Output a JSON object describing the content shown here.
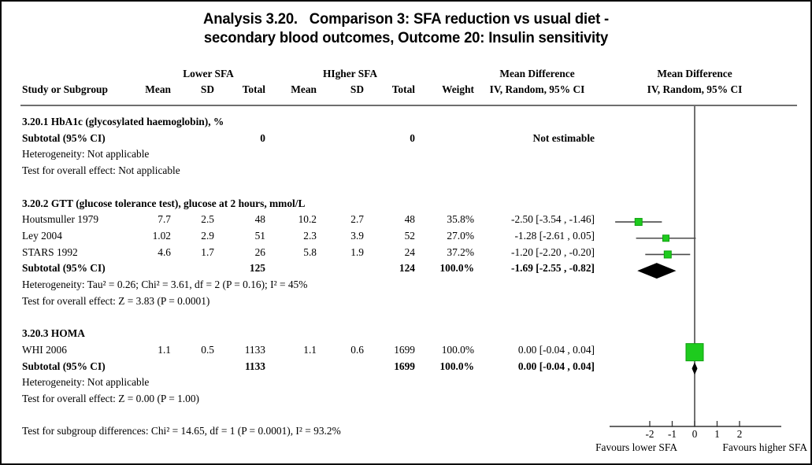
{
  "title": {
    "line1": "Analysis 3.20.   Comparison 3: SFA reduction vs usual diet -",
    "line2": "secondary blood outcomes, Outcome 20: Insulin sensitivity"
  },
  "header": {
    "study_col": "Study or Subgroup",
    "group1": "Lower SFA",
    "group2": "HIgher SFA",
    "mean": "Mean",
    "sd": "SD",
    "total": "Total",
    "weight": "Weight",
    "effect_title": "Mean Difference",
    "effect_method": "IV, Random, 95% CI",
    "plot_title": "Mean Difference",
    "plot_method": "IV, Random, 95% CI"
  },
  "rows": [
    {
      "kind": "heading",
      "label": "3.20.1 HbA1c (glycosylated haemoglobin), %"
    },
    {
      "kind": "subtotal",
      "label": "Subtotal (95% CI)",
      "total1": "0",
      "total2": "0",
      "ci": "Not estimable"
    },
    {
      "kind": "note",
      "label": "Heterogeneity: Not applicable"
    },
    {
      "kind": "note",
      "label": "Test for overall effect: Not applicable"
    },
    {
      "kind": "spacer"
    },
    {
      "kind": "heading",
      "label": "3.20.2 GTT (glucose tolerance test), glucose at 2 hours, mmol/L"
    },
    {
      "kind": "study",
      "label": "Houtsmuller 1979",
      "mean1": "7.7",
      "sd1": "2.5",
      "total1": "48",
      "mean2": "10.2",
      "sd2": "2.7",
      "total2": "48",
      "weight": "35.8%",
      "ci": "-2.50 [-3.54 , -1.46]",
      "marker": {
        "md": -2.5,
        "lo": -3.54,
        "hi": -1.46,
        "size": 9
      }
    },
    {
      "kind": "study",
      "label": "Ley 2004",
      "mean1": "1.02",
      "sd1": "2.9",
      "total1": "51",
      "mean2": "2.3",
      "sd2": "3.9",
      "total2": "52",
      "weight": "27.0%",
      "ci": "-1.28 [-2.61 , 0.05]",
      "marker": {
        "md": -1.28,
        "lo": -2.61,
        "hi": 0.05,
        "size": 8
      }
    },
    {
      "kind": "study",
      "label": "STARS 1992",
      "mean1": "4.6",
      "sd1": "1.7",
      "total1": "26",
      "mean2": "5.8",
      "sd2": "1.9",
      "total2": "24",
      "weight": "37.2%",
      "ci": "-1.20 [-2.20 , -0.20]",
      "marker": {
        "md": -1.2,
        "lo": -2.2,
        "hi": -0.2,
        "size": 9
      }
    },
    {
      "kind": "subtotal",
      "label": "Subtotal (95% CI)",
      "total1": "125",
      "total2": "124",
      "weight": "100.0%",
      "ci": "-1.69 [-2.55 , -0.82]",
      "diamond": {
        "md": -1.69,
        "lo": -2.55,
        "hi": -0.82,
        "halfH": 10
      }
    },
    {
      "kind": "note",
      "label": "Heterogeneity: Tau² = 0.26; Chi² = 3.61, df = 2 (P = 0.16); I² = 45%"
    },
    {
      "kind": "note",
      "label": "Test for overall effect: Z = 3.83 (P = 0.0001)"
    },
    {
      "kind": "spacer"
    },
    {
      "kind": "heading",
      "label": "3.20.3 HOMA"
    },
    {
      "kind": "study",
      "label": "WHI 2006",
      "mean1": "1.1",
      "sd1": "0.5",
      "total1": "1133",
      "mean2": "1.1",
      "sd2": "0.6",
      "total2": "1699",
      "weight": "100.0%",
      "ci": "0.00 [-0.04 , 0.04]",
      "marker": {
        "md": 0,
        "lo": -0.04,
        "hi": 0.04,
        "size": 22
      }
    },
    {
      "kind": "subtotal",
      "label": "Subtotal (95% CI)",
      "total1": "1133",
      "total2": "1699",
      "weight": "100.0%",
      "ci": "0.00 [-0.04 , 0.04]",
      "diamond": {
        "md": 0,
        "lo": -0.04,
        "hi": 0.04,
        "minHalfW": 3.5,
        "halfH": 8
      }
    },
    {
      "kind": "note",
      "label": "Heterogeneity: Not applicable"
    },
    {
      "kind": "note",
      "label": "Test for overall effect: Z = 0.00 (P = 1.00)"
    },
    {
      "kind": "spacer"
    },
    {
      "kind": "note",
      "label": "Test for subgroup differences: Chi² = 14.65, df = 1 (P = 0.0001), I² = 93.2%"
    }
  ],
  "axis": {
    "ticks": [
      "-2",
      "-1",
      "0",
      "1",
      "2"
    ],
    "tick_values": [
      -2,
      -1,
      0,
      1,
      2
    ],
    "favours_left": "Favours lower SFA",
    "favours_right": "Favours higher SFA"
  },
  "colors": {
    "square_fill": "#1ecb1e",
    "square_stroke": "#0f9f0f",
    "diamond_fill": "#000000",
    "ci_line": "#4a4a4a",
    "axis_line": "#333333"
  },
  "chart_data": {
    "type": "forest",
    "title": "Analysis 3.20. Comparison 3: SFA reduction vs usual diet - secondary blood outcomes, Outcome 20: Insulin sensitivity",
    "effect_measure": "Mean Difference, IV, Random, 95% CI",
    "comparison_groups": [
      "Lower SFA",
      "HIgher SFA"
    ],
    "xlim": [
      -3.8,
      3.8
    ],
    "x_ticks": [
      -2,
      -1,
      0,
      1,
      2
    ],
    "favours": [
      "Favours lower SFA",
      "Favours higher SFA"
    ],
    "subgroups": [
      {
        "name": "3.20.1 HbA1c (glycosylated haemoglobin), %",
        "studies": [],
        "subtotal": {
          "total1": 0,
          "total2": 0,
          "estimate": "Not estimable"
        },
        "heterogeneity": "Not applicable",
        "overall_effect": "Not applicable"
      },
      {
        "name": "3.20.2 GTT (glucose tolerance test), glucose at 2 hours, mmol/L",
        "studies": [
          {
            "study": "Houtsmuller 1979",
            "mean1": 7.7,
            "sd1": 2.5,
            "total1": 48,
            "mean2": 10.2,
            "sd2": 2.7,
            "total2": 48,
            "weight_pct": 35.8,
            "md": -2.5,
            "ci_low": -3.54,
            "ci_high": -1.46
          },
          {
            "study": "Ley 2004",
            "mean1": 1.02,
            "sd1": 2.9,
            "total1": 51,
            "mean2": 2.3,
            "sd2": 3.9,
            "total2": 52,
            "weight_pct": 27.0,
            "md": -1.28,
            "ci_low": -2.61,
            "ci_high": 0.05
          },
          {
            "study": "STARS 1992",
            "mean1": 4.6,
            "sd1": 1.7,
            "total1": 26,
            "mean2": 5.8,
            "sd2": 1.9,
            "total2": 24,
            "weight_pct": 37.2,
            "md": -1.2,
            "ci_low": -2.2,
            "ci_high": -0.2
          }
        ],
        "subtotal": {
          "total1": 125,
          "total2": 124,
          "weight_pct": 100.0,
          "md": -1.69,
          "ci_low": -2.55,
          "ci_high": -0.82
        },
        "heterogeneity": "Tau² = 0.26; Chi² = 3.61, df = 2 (P = 0.16); I² = 45%",
        "overall_effect": "Z = 3.83 (P = 0.0001)"
      },
      {
        "name": "3.20.3 HOMA",
        "studies": [
          {
            "study": "WHI 2006",
            "mean1": 1.1,
            "sd1": 0.5,
            "total1": 1133,
            "mean2": 1.1,
            "sd2": 0.6,
            "total2": 1699,
            "weight_pct": 100.0,
            "md": 0.0,
            "ci_low": -0.04,
            "ci_high": 0.04
          }
        ],
        "subtotal": {
          "total1": 1133,
          "total2": 1699,
          "weight_pct": 100.0,
          "md": 0.0,
          "ci_low": -0.04,
          "ci_high": 0.04
        },
        "heterogeneity": "Not applicable",
        "overall_effect": "Z = 0.00 (P = 1.00)"
      }
    ],
    "subgroup_differences": "Chi² = 14.65, df = 1 (P = 0.0001), I² = 93.2%"
  }
}
